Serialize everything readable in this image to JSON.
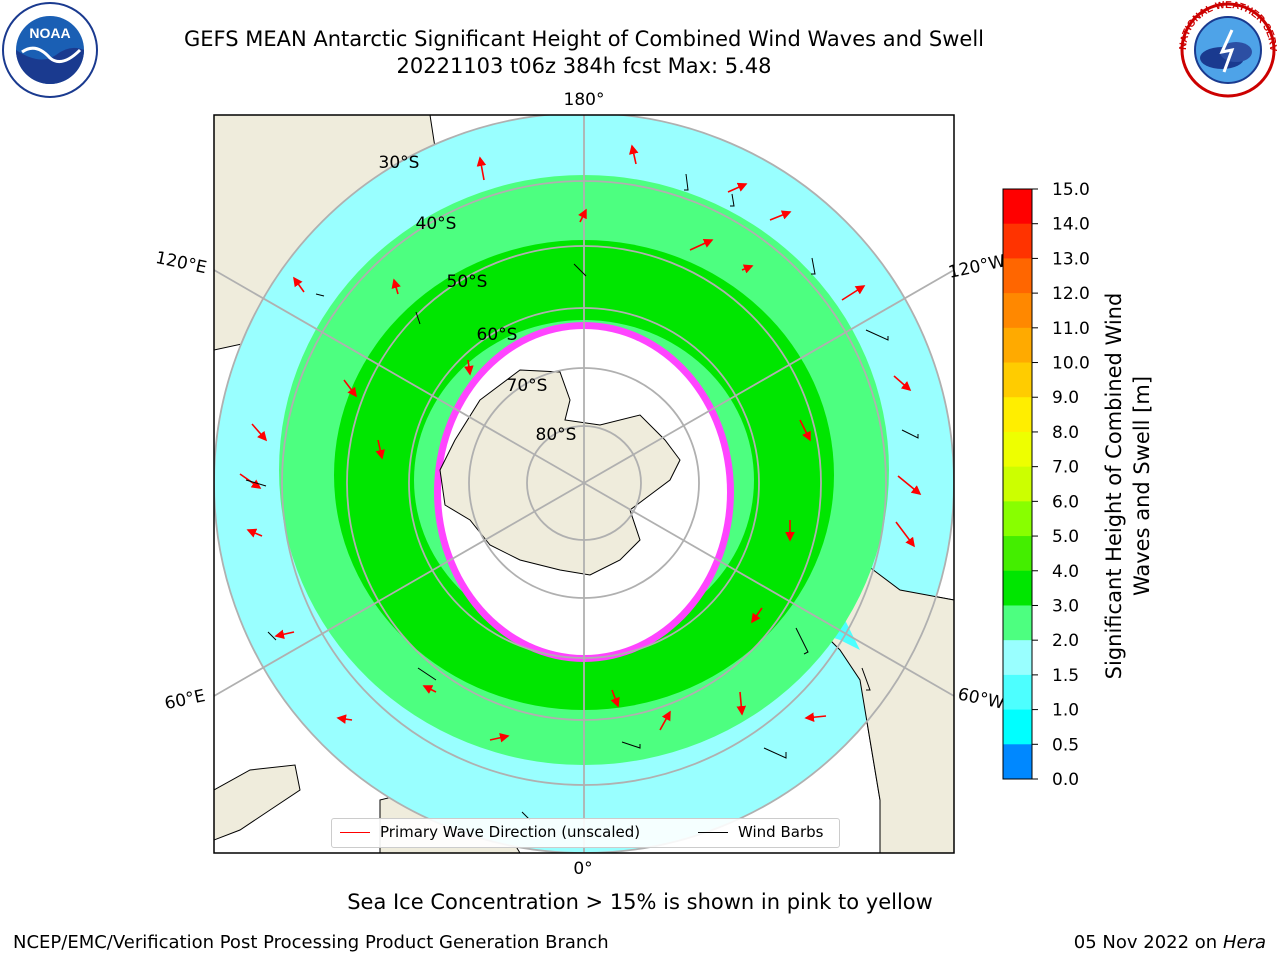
{
  "title": {
    "line1": "GEFS MEAN Antarctic Significant Height of Combined Wind Waves and Swell",
    "line2": "20221103 t06z 384h fcst   Max: 5.48"
  },
  "map": {
    "projection": "South Polar Stereographic",
    "lon_labels": [
      "180°",
      "120°E",
      "120°W",
      "60°E",
      "60°W",
      "0°"
    ],
    "lat_labels": [
      "30°S",
      "40°S",
      "50°S",
      "60°S",
      "70°S",
      "80°S"
    ],
    "colors": {
      "land": "#efecdc",
      "ice_interior": "#ffffff",
      "ice_edge": "#ff33ff",
      "ice_edge_yellow": "#ffb033",
      "band_1_5_2": "#00ffff",
      "band_2_3": "#99ffff",
      "band_3_4": "#4dff80",
      "band_4_5": "#00e600",
      "grid": "#b0b0b0",
      "wave_arrow": "#ff0000",
      "wind_barb": "#000000"
    }
  },
  "legend": {
    "wave_label": "Primary Wave Direction (unscaled)",
    "barb_label": "Wind Barbs"
  },
  "colorbar": {
    "title": "Significant Height of Combined Wind Waves and Swell [m]",
    "ticks": [
      "15.0",
      "14.0",
      "13.0",
      "12.0",
      "11.0",
      "10.0",
      "9.0",
      "8.0",
      "7.0",
      "6.0",
      "5.0",
      "4.0",
      "3.0",
      "2.0",
      "1.5",
      "1.0",
      "0.5",
      "0.0"
    ],
    "colors": [
      "#ff0000",
      "#ff3300",
      "#ff6600",
      "#ff8800",
      "#ffaa00",
      "#ffcc00",
      "#ffee00",
      "#eeff00",
      "#ccff00",
      "#88ff00",
      "#44ee00",
      "#00e600",
      "#4dff80",
      "#99ffff",
      "#4dffff",
      "#00ffff",
      "#0088ff",
      "#0000ff"
    ]
  },
  "logos": {
    "noaa_text": "NOAA",
    "noaa_ring": "NATIONAL OCEANIC AND ATMOSPHERIC ADMINISTRATION · U.S. DEPARTMENT OF COMMERCE",
    "nws_ring": "NATIONAL WEATHER SERVICE"
  },
  "footer": {
    "sea_ice_note": "Sea Ice Concentration > 15% is shown in pink to yellow",
    "credit": "NCEP/EMC/Verification Post Processing Product Generation Branch",
    "date": "05 Nov 2022 on",
    "host": "Hera"
  }
}
